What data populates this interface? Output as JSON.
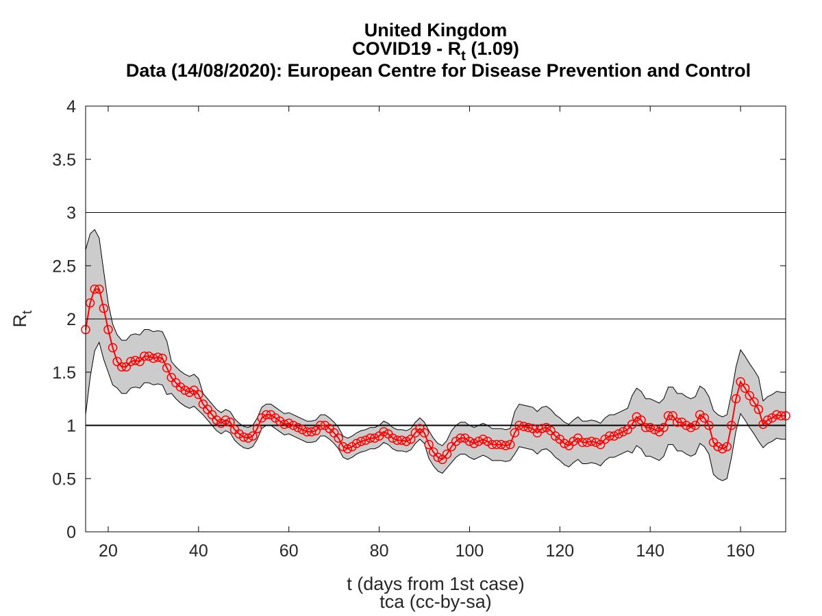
{
  "chart_data": {
    "type": "line",
    "title": "United Kingdom",
    "subtitle": [
      "COVID19 - R",
      "t",
      " (1.09)"
    ],
    "source": "Data (14/08/2020): European Centre for Disease Prevention and Control",
    "xlabel": "t (days from 1st case)",
    "footer": "tca (cc-by-sa)",
    "ylabel": [
      "R",
      "t"
    ],
    "xlim": [
      15,
      170
    ],
    "xticks": [
      20,
      40,
      60,
      80,
      100,
      120,
      140,
      160
    ],
    "ylim": [
      0,
      4
    ],
    "yticks": [
      0,
      0.5,
      1,
      1.5,
      2,
      2.5,
      3,
      3.5,
      4
    ],
    "hlines": [
      1,
      2,
      3
    ],
    "x": [
      15,
      16,
      17,
      18,
      19,
      20,
      21,
      22,
      23,
      24,
      25,
      26,
      27,
      28,
      29,
      30,
      31,
      32,
      33,
      34,
      35,
      36,
      37,
      38,
      39,
      40,
      41,
      42,
      43,
      44,
      45,
      46,
      47,
      48,
      49,
      50,
      51,
      52,
      53,
      54,
      55,
      56,
      57,
      58,
      59,
      60,
      61,
      62,
      63,
      64,
      65,
      66,
      67,
      68,
      69,
      70,
      71,
      72,
      73,
      74,
      75,
      76,
      77,
      78,
      79,
      80,
      81,
      82,
      83,
      84,
      85,
      86,
      87,
      88,
      89,
      90,
      91,
      92,
      93,
      94,
      95,
      96,
      97,
      98,
      99,
      100,
      101,
      102,
      103,
      104,
      105,
      106,
      107,
      108,
      109,
      110,
      111,
      112,
      113,
      114,
      115,
      116,
      117,
      118,
      119,
      120,
      121,
      122,
      123,
      124,
      125,
      126,
      127,
      128,
      129,
      130,
      131,
      132,
      133,
      134,
      135,
      136,
      137,
      138,
      139,
      140,
      141,
      142,
      143,
      144,
      145,
      146,
      147,
      148,
      149,
      150,
      151,
      152,
      153,
      154,
      155,
      156,
      157,
      158,
      159,
      160,
      161,
      162,
      163,
      164,
      165,
      166,
      167,
      168,
      169,
      170
    ],
    "series": [
      {
        "color": "#ff0000",
        "values": [
          1.9,
          2.15,
          2.28,
          2.28,
          2.1,
          1.9,
          1.73,
          1.6,
          1.55,
          1.55,
          1.6,
          1.61,
          1.6,
          1.65,
          1.65,
          1.63,
          1.64,
          1.63,
          1.54,
          1.45,
          1.4,
          1.36,
          1.33,
          1.31,
          1.33,
          1.29,
          1.2,
          1.15,
          1.1,
          1.05,
          1.02,
          1.05,
          1.03,
          0.96,
          0.92,
          0.89,
          0.88,
          0.9,
          0.97,
          1.07,
          1.1,
          1.1,
          1.07,
          1.04,
          1.01,
          1.02,
          1.0,
          0.98,
          0.96,
          0.94,
          0.94,
          0.95,
          1.0,
          1.0,
          0.97,
          0.93,
          0.88,
          0.8,
          0.78,
          0.8,
          0.83,
          0.85,
          0.86,
          0.88,
          0.88,
          0.9,
          0.94,
          0.92,
          0.88,
          0.86,
          0.86,
          0.85,
          0.87,
          0.93,
          0.97,
          0.93,
          0.82,
          0.75,
          0.7,
          0.68,
          0.73,
          0.8,
          0.85,
          0.88,
          0.88,
          0.85,
          0.83,
          0.85,
          0.87,
          0.85,
          0.82,
          0.82,
          0.82,
          0.81,
          0.82,
          0.93,
          1.0,
          0.99,
          0.98,
          0.97,
          0.93,
          0.97,
          0.98,
          0.95,
          0.9,
          0.87,
          0.83,
          0.81,
          0.85,
          0.88,
          0.84,
          0.84,
          0.85,
          0.84,
          0.82,
          0.87,
          0.9,
          0.9,
          0.92,
          0.94,
          0.96,
          1.01,
          1.08,
          1.05,
          0.98,
          0.98,
          0.96,
          0.94,
          0.98,
          1.09,
          1.09,
          1.03,
          1.03,
          1.0,
          0.98,
          1.0,
          1.1,
          1.07,
          1.0,
          0.84,
          0.8,
          0.78,
          0.8,
          1.0,
          1.25,
          1.41,
          1.35,
          1.28,
          1.22,
          1.15,
          1.01,
          1.05,
          1.07,
          1.1,
          1.09,
          1.09
        ]
      }
    ],
    "band": {
      "color": "#cccccc",
      "upper": [
        2.65,
        2.8,
        2.84,
        2.76,
        2.45,
        2.15,
        1.95,
        1.85,
        1.8,
        1.8,
        1.85,
        1.86,
        1.85,
        1.9,
        1.9,
        1.88,
        1.89,
        1.88,
        1.79,
        1.6,
        1.55,
        1.51,
        1.48,
        1.46,
        1.48,
        1.44,
        1.3,
        1.25,
        1.2,
        1.15,
        1.12,
        1.15,
        1.13,
        1.06,
        1.02,
        0.99,
        0.98,
        1.0,
        1.07,
        1.17,
        1.2,
        1.2,
        1.17,
        1.14,
        1.11,
        1.12,
        1.1,
        1.08,
        1.06,
        1.04,
        1.04,
        1.05,
        1.1,
        1.1,
        1.07,
        1.03,
        0.98,
        0.9,
        0.88,
        0.9,
        0.93,
        0.95,
        0.96,
        0.98,
        0.98,
        1.0,
        1.04,
        1.02,
        0.98,
        0.96,
        0.96,
        0.95,
        0.97,
        1.03,
        1.07,
        1.03,
        0.95,
        0.88,
        0.83,
        0.81,
        0.86,
        0.95,
        1.0,
        1.03,
        1.03,
        1.0,
        0.98,
        1.0,
        1.02,
        1.0,
        0.97,
        0.97,
        0.97,
        0.96,
        0.97,
        1.13,
        1.2,
        1.19,
        1.18,
        1.17,
        1.13,
        1.17,
        1.18,
        1.15,
        1.1,
        1.07,
        1.03,
        1.01,
        1.05,
        1.08,
        1.04,
        1.04,
        1.05,
        1.04,
        1.02,
        1.07,
        1.1,
        1.1,
        1.12,
        1.14,
        1.16,
        1.28,
        1.35,
        1.32,
        1.25,
        1.25,
        1.23,
        1.21,
        1.25,
        1.36,
        1.36,
        1.3,
        1.3,
        1.27,
        1.25,
        1.27,
        1.37,
        1.34,
        1.27,
        1.14,
        1.1,
        1.08,
        1.1,
        1.3,
        1.55,
        1.71,
        1.65,
        1.58,
        1.52,
        1.45,
        1.23,
        1.27,
        1.29,
        1.32,
        1.31,
        1.31
      ],
      "lower": [
        1.1,
        1.45,
        1.7,
        1.78,
        1.62,
        1.5,
        1.38,
        1.35,
        1.3,
        1.3,
        1.35,
        1.36,
        1.35,
        1.4,
        1.4,
        1.38,
        1.39,
        1.38,
        1.29,
        1.3,
        1.25,
        1.21,
        1.18,
        1.16,
        1.18,
        1.14,
        1.1,
        1.05,
        1.0,
        0.95,
        0.92,
        0.95,
        0.93,
        0.86,
        0.82,
        0.79,
        0.78,
        0.8,
        0.87,
        0.97,
        1.0,
        1.0,
        0.97,
        0.94,
        0.91,
        0.92,
        0.9,
        0.88,
        0.86,
        0.84,
        0.84,
        0.85,
        0.9,
        0.9,
        0.87,
        0.83,
        0.78,
        0.7,
        0.68,
        0.7,
        0.73,
        0.75,
        0.76,
        0.78,
        0.78,
        0.8,
        0.84,
        0.82,
        0.78,
        0.76,
        0.76,
        0.75,
        0.77,
        0.83,
        0.87,
        0.83,
        0.69,
        0.62,
        0.57,
        0.55,
        0.6,
        0.65,
        0.7,
        0.73,
        0.73,
        0.7,
        0.68,
        0.7,
        0.72,
        0.7,
        0.67,
        0.67,
        0.67,
        0.66,
        0.67,
        0.73,
        0.8,
        0.79,
        0.78,
        0.77,
        0.73,
        0.77,
        0.78,
        0.75,
        0.7,
        0.67,
        0.63,
        0.61,
        0.65,
        0.68,
        0.64,
        0.64,
        0.65,
        0.64,
        0.62,
        0.67,
        0.7,
        0.7,
        0.72,
        0.74,
        0.76,
        0.74,
        0.81,
        0.78,
        0.71,
        0.71,
        0.69,
        0.67,
        0.71,
        0.82,
        0.82,
        0.76,
        0.76,
        0.73,
        0.71,
        0.73,
        0.83,
        0.8,
        0.73,
        0.54,
        0.5,
        0.48,
        0.5,
        0.7,
        0.95,
        1.11,
        1.05,
        0.98,
        0.92,
        0.85,
        0.79,
        0.83,
        0.85,
        0.88,
        0.87,
        0.87
      ]
    }
  }
}
